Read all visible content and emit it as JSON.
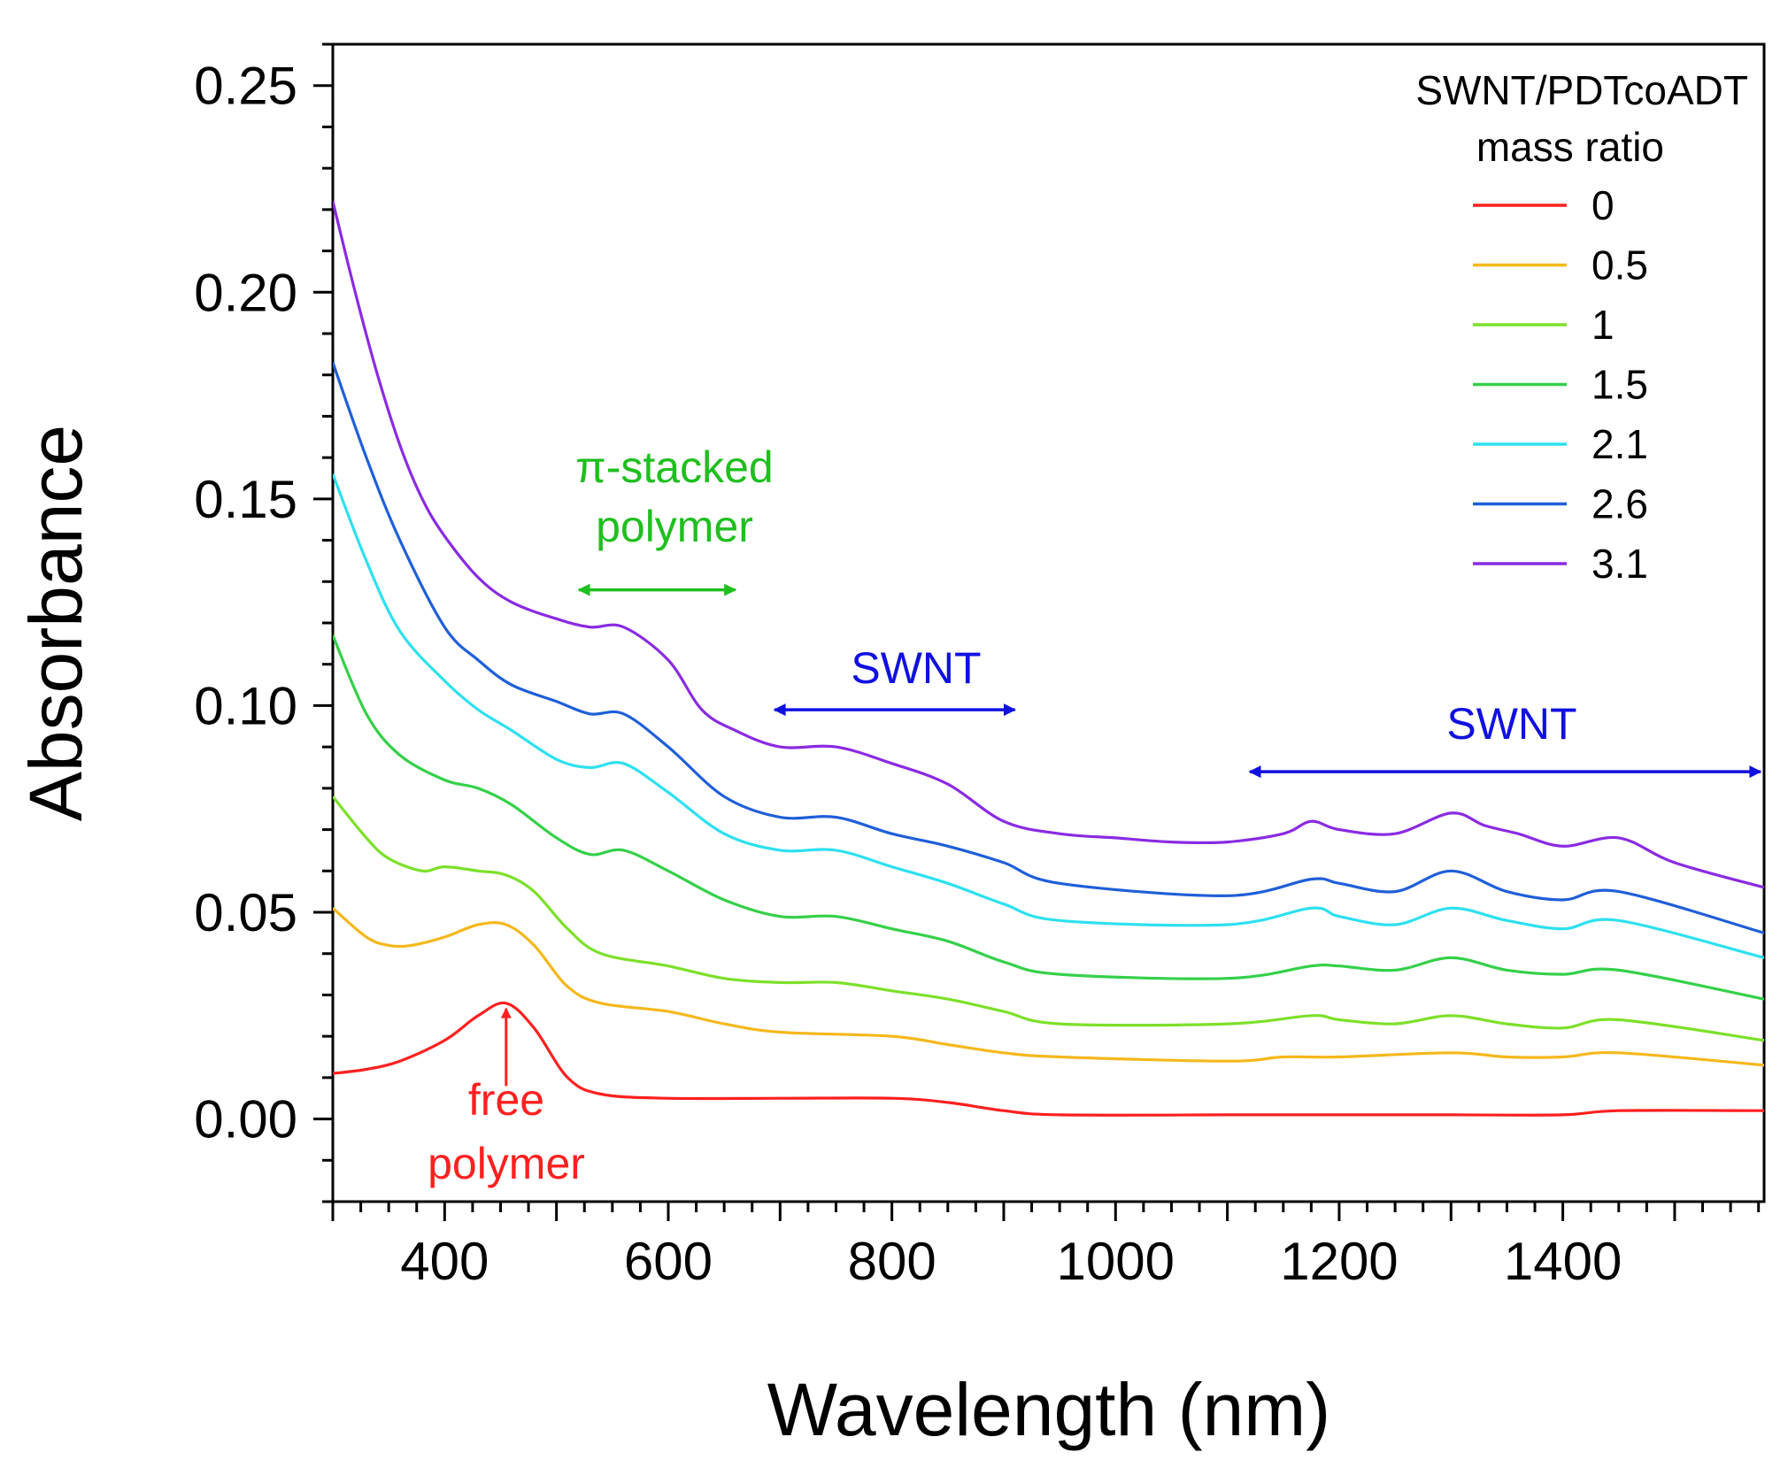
{
  "chart_data": {
    "type": "line",
    "title": "",
    "xlabel": "Wavelength (nm)",
    "ylabel": "Absorbance",
    "xlim": [
      300,
      1580
    ],
    "ylim": [
      -0.02,
      0.26
    ],
    "xticks": [
      400,
      600,
      800,
      1000,
      1200,
      1400
    ],
    "xtick_labels": [
      "400",
      "600",
      "800",
      "1000",
      "1200",
      "1400"
    ],
    "yticks": [
      0.0,
      0.05,
      0.1,
      0.15,
      0.2,
      0.25
    ],
    "ytick_labels": [
      "0.00",
      "0.05",
      "0.10",
      "0.15",
      "0.20",
      "0.25"
    ],
    "grid": false,
    "legend": {
      "title_line1": "SWNT/PDTcoADT",
      "title_line2": "mass ratio",
      "placement": "top-right"
    },
    "series": [
      {
        "name": "0",
        "color": "#ff2020",
        "x": [
          300,
          330,
          360,
          400,
          430,
          455,
          480,
          510,
          540,
          600,
          700,
          800,
          850,
          900,
          950,
          1100,
          1150,
          1200,
          1300,
          1400,
          1450,
          1580
        ],
        "y": [
          0.011,
          0.012,
          0.014,
          0.019,
          0.025,
          0.028,
          0.022,
          0.01,
          0.006,
          0.005,
          0.005,
          0.005,
          0.004,
          0.002,
          0.001,
          0.001,
          0.001,
          0.001,
          0.001,
          0.001,
          0.002,
          0.002
        ]
      },
      {
        "name": "0.5",
        "color": "#f5b81c",
        "x": [
          300,
          330,
          350,
          370,
          400,
          430,
          455,
          480,
          510,
          540,
          600,
          650,
          700,
          800,
          850,
          900,
          950,
          1100,
          1150,
          1200,
          1300,
          1350,
          1400,
          1450,
          1580
        ],
        "y": [
          0.051,
          0.044,
          0.042,
          0.042,
          0.044,
          0.047,
          0.047,
          0.042,
          0.032,
          0.028,
          0.026,
          0.023,
          0.021,
          0.02,
          0.018,
          0.016,
          0.015,
          0.014,
          0.015,
          0.015,
          0.016,
          0.015,
          0.015,
          0.016,
          0.013
        ]
      },
      {
        "name": "1",
        "color": "#7de02a",
        "x": [
          300,
          330,
          350,
          380,
          400,
          430,
          455,
          480,
          510,
          540,
          600,
          650,
          700,
          750,
          800,
          850,
          900,
          950,
          1100,
          1175,
          1200,
          1250,
          1300,
          1350,
          1400,
          1450,
          1580
        ],
        "y": [
          0.078,
          0.068,
          0.063,
          0.06,
          0.061,
          0.06,
          0.059,
          0.055,
          0.046,
          0.04,
          0.037,
          0.034,
          0.033,
          0.033,
          0.031,
          0.029,
          0.026,
          0.023,
          0.023,
          0.025,
          0.024,
          0.023,
          0.025,
          0.023,
          0.022,
          0.024,
          0.019
        ]
      },
      {
        "name": "1.5",
        "color": "#35d04a",
        "x": [
          300,
          330,
          360,
          400,
          430,
          460,
          500,
          530,
          560,
          600,
          650,
          700,
          750,
          800,
          850,
          900,
          950,
          1100,
          1175,
          1200,
          1250,
          1300,
          1350,
          1400,
          1450,
          1580
        ],
        "y": [
          0.117,
          0.098,
          0.088,
          0.082,
          0.08,
          0.076,
          0.068,
          0.064,
          0.065,
          0.06,
          0.053,
          0.049,
          0.049,
          0.046,
          0.043,
          0.038,
          0.035,
          0.034,
          0.037,
          0.037,
          0.036,
          0.039,
          0.036,
          0.035,
          0.036,
          0.029
        ]
      },
      {
        "name": "2.1",
        "color": "#2ee0f0",
        "x": [
          300,
          330,
          360,
          400,
          430,
          460,
          500,
          530,
          560,
          600,
          650,
          700,
          750,
          800,
          850,
          900,
          950,
          1100,
          1175,
          1200,
          1250,
          1300,
          1350,
          1400,
          1450,
          1580
        ],
        "y": [
          0.156,
          0.135,
          0.118,
          0.106,
          0.099,
          0.094,
          0.087,
          0.085,
          0.086,
          0.079,
          0.069,
          0.065,
          0.065,
          0.061,
          0.057,
          0.052,
          0.048,
          0.047,
          0.051,
          0.049,
          0.047,
          0.051,
          0.048,
          0.046,
          0.048,
          0.039
        ]
      },
      {
        "name": "2.6",
        "color": "#1f5fd8",
        "x": [
          300,
          330,
          360,
          400,
          430,
          460,
          500,
          530,
          560,
          600,
          650,
          700,
          750,
          800,
          850,
          900,
          950,
          1100,
          1175,
          1200,
          1250,
          1300,
          1350,
          1400,
          1450,
          1580
        ],
        "y": [
          0.183,
          0.16,
          0.14,
          0.119,
          0.111,
          0.105,
          0.101,
          0.098,
          0.098,
          0.09,
          0.078,
          0.073,
          0.073,
          0.069,
          0.066,
          0.062,
          0.057,
          0.054,
          0.058,
          0.057,
          0.055,
          0.06,
          0.055,
          0.053,
          0.055,
          0.045
        ]
      },
      {
        "name": "3.1",
        "color": "#8a2be2",
        "x": [
          300,
          320,
          340,
          360,
          380,
          400,
          430,
          460,
          500,
          530,
          560,
          600,
          630,
          660,
          700,
          750,
          800,
          850,
          900,
          950,
          1000,
          1050,
          1100,
          1150,
          1175,
          1200,
          1250,
          1300,
          1330,
          1360,
          1400,
          1450,
          1500,
          1580
        ],
        "y": [
          0.222,
          0.2,
          0.18,
          0.163,
          0.15,
          0.141,
          0.131,
          0.125,
          0.121,
          0.119,
          0.119,
          0.111,
          0.099,
          0.094,
          0.09,
          0.09,
          0.086,
          0.081,
          0.072,
          0.069,
          0.068,
          0.067,
          0.067,
          0.069,
          0.072,
          0.07,
          0.069,
          0.074,
          0.071,
          0.069,
          0.066,
          0.068,
          0.062,
          0.056
        ]
      }
    ],
    "annotations": {
      "free_polymer": {
        "text_line1": "free",
        "text_line2": "polymer",
        "color": "#ff2020",
        "x": 455,
        "y_from": 0.008,
        "y_to": 0.028
      },
      "pi_stacked": {
        "text_line1": "π-stacked",
        "text_line2": "polymer",
        "color": "#1fbf1f",
        "x_from": 520,
        "x_to": 660,
        "y": 0.128
      },
      "swnt_mid": {
        "text": "SWNT",
        "color": "#1010e0",
        "x_from": 695,
        "x_to": 910,
        "y": 0.099
      },
      "swnt_right": {
        "text": "SWNT",
        "color": "#1010e0",
        "x_from": 1120,
        "x_to": 1580,
        "y": 0.084
      }
    }
  }
}
